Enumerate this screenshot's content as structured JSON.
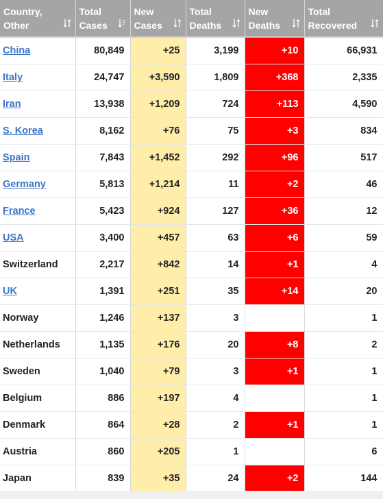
{
  "headers": [
    {
      "line1": "Country,",
      "line2": "Other"
    },
    {
      "line1": "Total",
      "line2": "Cases"
    },
    {
      "line1": "New",
      "line2": "Cases"
    },
    {
      "line1": "Total",
      "line2": "Deaths"
    },
    {
      "line1": "New",
      "line2": "Deaths"
    },
    {
      "line1": "Total",
      "line2": "Recovered"
    }
  ],
  "icons": {
    "sort": "sort-arrows-icon",
    "sort_active": "sort-descending-icon"
  },
  "colors": {
    "link": "#3c75c8",
    "new_cases_bg": "#ffeeaa",
    "new_deaths_bg": "#ff0000",
    "header_bg": "#f2f2f2"
  },
  "rows": [
    {
      "country": "China",
      "link": true,
      "total_cases": "80,849",
      "new_cases": "+25",
      "total_deaths": "3,199",
      "new_deaths": "+10",
      "total_recovered": "66,931"
    },
    {
      "country": "Italy",
      "link": true,
      "total_cases": "24,747",
      "new_cases": "+3,590",
      "total_deaths": "1,809",
      "new_deaths": "+368",
      "total_recovered": "2,335"
    },
    {
      "country": "Iran",
      "link": true,
      "total_cases": "13,938",
      "new_cases": "+1,209",
      "total_deaths": "724",
      "new_deaths": "+113",
      "total_recovered": "4,590"
    },
    {
      "country": "S. Korea",
      "link": true,
      "total_cases": "8,162",
      "new_cases": "+76",
      "total_deaths": "75",
      "new_deaths": "+3",
      "total_recovered": "834"
    },
    {
      "country": "Spain",
      "link": true,
      "total_cases": "7,843",
      "new_cases": "+1,452",
      "total_deaths": "292",
      "new_deaths": "+96",
      "total_recovered": "517"
    },
    {
      "country": "Germany",
      "link": true,
      "total_cases": "5,813",
      "new_cases": "+1,214",
      "total_deaths": "11",
      "new_deaths": "+2",
      "total_recovered": "46"
    },
    {
      "country": "France",
      "link": true,
      "total_cases": "5,423",
      "new_cases": "+924",
      "total_deaths": "127",
      "new_deaths": "+36",
      "total_recovered": "12"
    },
    {
      "country": "USA",
      "link": true,
      "total_cases": "3,400",
      "new_cases": "+457",
      "total_deaths": "63",
      "new_deaths": "+6",
      "total_recovered": "59"
    },
    {
      "country": "Switzerland",
      "link": false,
      "total_cases": "2,217",
      "new_cases": "+842",
      "total_deaths": "14",
      "new_deaths": "+1",
      "total_recovered": "4"
    },
    {
      "country": "UK",
      "link": true,
      "total_cases": "1,391",
      "new_cases": "+251",
      "total_deaths": "35",
      "new_deaths": "+14",
      "total_recovered": "20"
    },
    {
      "country": "Norway",
      "link": false,
      "total_cases": "1,246",
      "new_cases": "+137",
      "total_deaths": "3",
      "new_deaths": "",
      "total_recovered": "1"
    },
    {
      "country": "Netherlands",
      "link": false,
      "total_cases": "1,135",
      "new_cases": "+176",
      "total_deaths": "20",
      "new_deaths": "+8",
      "total_recovered": "2"
    },
    {
      "country": "Sweden",
      "link": false,
      "total_cases": "1,040",
      "new_cases": "+79",
      "total_deaths": "3",
      "new_deaths": "+1",
      "total_recovered": "1"
    },
    {
      "country": "Belgium",
      "link": false,
      "total_cases": "886",
      "new_cases": "+197",
      "total_deaths": "4",
      "new_deaths": "",
      "total_recovered": "1"
    },
    {
      "country": "Denmark",
      "link": false,
      "total_cases": "864",
      "new_cases": "+28",
      "total_deaths": "2",
      "new_deaths": "+1",
      "total_recovered": "1"
    },
    {
      "country": "Austria",
      "link": false,
      "total_cases": "860",
      "new_cases": "+205",
      "total_deaths": "1",
      "new_deaths": "",
      "total_recovered": "6"
    },
    {
      "country": "Japan",
      "link": false,
      "total_cases": "839",
      "new_cases": "+35",
      "total_deaths": "24",
      "new_deaths": "+2",
      "total_recovered": "144"
    }
  ]
}
